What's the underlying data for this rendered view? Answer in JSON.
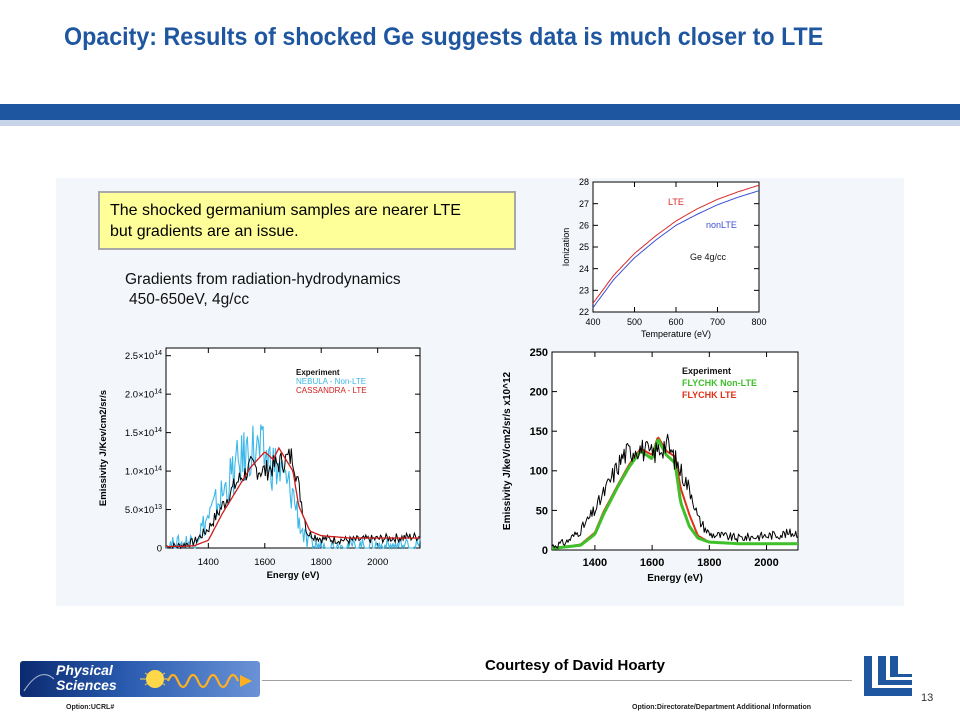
{
  "slide": {
    "title": "Opacity: Results of shocked Ge suggests data is much closer to LTE",
    "callout_lines": [
      "The shocked germanium samples are nearer LTE",
      "but gradients are an issue."
    ],
    "gradients_lines": [
      "Gradients from radiation-hydrodynamics",
      "450-650eV, 4g/cc"
    ],
    "courtesy": "Courtesy of David Hoarty",
    "page_number": "13",
    "footer_left": "Option:UCRL#",
    "footer_right": "Option:Directorate/Department  Additional Information",
    "logo_text": [
      "Physical",
      "Sciences"
    ]
  },
  "colors": {
    "title": "#1f56a0",
    "band": "#1f56a0",
    "lte": "#d62a2a",
    "nonlte": "#3b4fd6",
    "experiment": "#000000",
    "nebula": "#3cb8e8",
    "cassandra": "#d01c1c",
    "flychk_nonlte": "#3fbf2a",
    "flychk_lte": "#e03018"
  },
  "chart_data": [
    {
      "type": "line",
      "xlabel": "Temperature (eV)",
      "ylabel": "Ionization",
      "xlim": [
        400,
        800
      ],
      "ylim": [
        22,
        28
      ],
      "xticks": [
        "400",
        "500",
        "600",
        "700",
        "800"
      ],
      "yticks": [
        "22",
        "23",
        "24",
        "25",
        "26",
        "27",
        "28"
      ],
      "annotation": "Ge 4g/cc",
      "series": [
        {
          "name": "LTE",
          "x": [
            400,
            450,
            500,
            550,
            600,
            650,
            700,
            750,
            800
          ],
          "values": [
            22.4,
            23.7,
            24.7,
            25.5,
            26.2,
            26.75,
            27.2,
            27.55,
            27.85
          ]
        },
        {
          "name": "nonLTE",
          "x": [
            400,
            450,
            500,
            550,
            600,
            650,
            700,
            750,
            800
          ],
          "values": [
            22.2,
            23.5,
            24.5,
            25.3,
            26.0,
            26.5,
            26.95,
            27.3,
            27.6
          ]
        }
      ]
    },
    {
      "type": "line",
      "xlabel": "Energy (eV)",
      "ylabel": "Emissivity J/Kev/cm2/sr/s",
      "xlim": [
        1250,
        2150
      ],
      "ylim": [
        0,
        260000000000000.0
      ],
      "xticks": [
        "1400",
        "1600",
        "1800",
        "2000"
      ],
      "yticks": [
        "0",
        "5.0x10^13",
        "1.0x10^14",
        "1.5x10^14",
        "2.0x10^14",
        "2.5x10^14"
      ],
      "series": [
        {
          "name": "Experiment",
          "x": [
            1250,
            1300,
            1350,
            1400,
            1450,
            1500,
            1550,
            1600,
            1650,
            1700,
            1730,
            1750,
            1800,
            1900,
            2000,
            2100,
            2150
          ],
          "values": [
            2000000000000.0,
            3000000000000.0,
            8000000000000.0,
            25000000000000.0,
            55000000000000.0,
            85000000000000.0,
            105000000000000.0,
            100000000000000.0,
            110000000000000.0,
            120000000000000.0,
            60000000000000.0,
            20000000000000.0,
            12000000000000.0,
            10000000000000.0,
            12000000000000.0,
            14000000000000.0,
            15000000000000.0
          ]
        },
        {
          "name": "NEBULA - Non-LTE",
          "x": [
            1250,
            1300,
            1350,
            1400,
            1450,
            1500,
            1550,
            1600,
            1650,
            1700,
            1730,
            1750,
            1800,
            1900,
            2000,
            2100,
            2150
          ],
          "values": [
            2000000000000.0,
            5000000000000.0,
            10000000000000.0,
            40000000000000.0,
            70000000000000.0,
            105000000000000.0,
            130000000000000.0,
            120000000000000.0,
            100000000000000.0,
            70000000000000.0,
            25000000000000.0,
            5000000000000.0,
            2000000000000.0,
            2000000000000.0,
            2000000000000.0,
            2000000000000.0,
            2000000000000.0
          ]
        },
        {
          "name": "CASSANDRA - LTE",
          "x": [
            1250,
            1300,
            1350,
            1400,
            1450,
            1500,
            1550,
            1600,
            1630,
            1650,
            1700,
            1720,
            1760,
            1800,
            1900,
            2000,
            2100,
            2150
          ],
          "values": [
            2000000000000.0,
            2000000000000.0,
            3000000000000.0,
            10000000000000.0,
            45000000000000.0,
            75000000000000.0,
            105000000000000.0,
            125000000000000.0,
            115000000000000.0,
            130000000000000.0,
            100000000000000.0,
            55000000000000.0,
            22000000000000.0,
            16000000000000.0,
            13000000000000.0,
            13000000000000.0,
            13000000000000.0,
            13000000000000.0
          ]
        }
      ]
    },
    {
      "type": "line",
      "xlabel": "Energy (eV)",
      "ylabel": "Emissivity J/keV/cm2/sr/s x10^12",
      "xlim": [
        1250,
        2110
      ],
      "ylim": [
        0,
        250
      ],
      "xticks": [
        "1400",
        "1600",
        "1800",
        "2000"
      ],
      "yticks": [
        "0",
        "50",
        "100",
        "150",
        "200",
        "250"
      ],
      "series": [
        {
          "name": "Experiment",
          "x": [
            1250,
            1300,
            1350,
            1400,
            1450,
            1500,
            1550,
            1600,
            1650,
            1700,
            1740,
            1760,
            1800,
            1900,
            2000,
            2110
          ],
          "values": [
            5,
            10,
            25,
            50,
            85,
            120,
            130,
            120,
            135,
            100,
            70,
            40,
            20,
            15,
            18,
            22
          ]
        },
        {
          "name": "FLYCHK Non-LTE",
          "x": [
            1250,
            1300,
            1350,
            1400,
            1430,
            1480,
            1520,
            1560,
            1600,
            1620,
            1650,
            1680,
            1700,
            1730,
            1760,
            1800,
            1900,
            2000,
            2110
          ],
          "values": [
            2,
            4,
            6,
            20,
            45,
            80,
            105,
            125,
            115,
            140,
            120,
            110,
            60,
            30,
            15,
            10,
            8,
            8,
            8
          ]
        },
        {
          "name": "FLYCHK LTE",
          "x": [
            1250,
            1300,
            1350,
            1400,
            1430,
            1480,
            1520,
            1560,
            1600,
            1620,
            1650,
            1680,
            1700,
            1730,
            1760,
            1800,
            1900,
            2000,
            2110
          ],
          "values": [
            2,
            4,
            7,
            22,
            48,
            82,
            108,
            128,
            120,
            143,
            125,
            118,
            78,
            45,
            18,
            10,
            8,
            8,
            8
          ]
        }
      ]
    }
  ]
}
